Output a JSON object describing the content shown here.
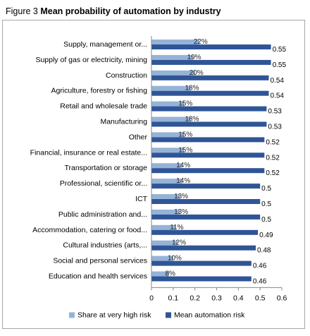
{
  "figure": {
    "label": "Figure 3",
    "title": "Mean probability of automation by industry"
  },
  "chart_data": {
    "type": "bar",
    "orientation": "horizontal",
    "categories": [
      "Supply, management or...",
      "Supply of gas or electricity, mining",
      "Construction",
      "Agriculture, forestry or fishing",
      "Retail and wholesale trade",
      "Manufacturing",
      "Other",
      "Financial, insurance or real estate...",
      "Transportation or storage",
      "Professional, scientific or...",
      "ICT",
      "Public administration and...",
      "Accommodation, catering or food...",
      "Cultural industries (arts,...",
      "Social and personal services",
      "Education and health services"
    ],
    "series": [
      {
        "name": "Share at very high risk",
        "color": "#95b3d7",
        "values": [
          0.22,
          0.19,
          0.2,
          0.18,
          0.15,
          0.18,
          0.15,
          0.15,
          0.14,
          0.14,
          0.13,
          0.13,
          0.11,
          0.12,
          0.1,
          0.08
        ],
        "data_labels": [
          "22%",
          "19%",
          "20%",
          "18%",
          "15%",
          "18%",
          "15%",
          "15%",
          "14%",
          "14%",
          "13%",
          "13%",
          "11%",
          "12%",
          "10%",
          "8%"
        ]
      },
      {
        "name": "Mean automation risk",
        "color": "#2f5597",
        "values": [
          0.55,
          0.55,
          0.54,
          0.54,
          0.53,
          0.53,
          0.52,
          0.52,
          0.52,
          0.5,
          0.5,
          0.5,
          0.49,
          0.48,
          0.46,
          0.46
        ],
        "data_labels": [
          "0.55",
          "0.55",
          "0.54",
          "0.54",
          "0.53",
          "0.53",
          "0.52",
          "0.52",
          "0.52",
          "0.5",
          "0.5",
          "0.5",
          "0.49",
          "0.48",
          "0.46",
          "0.46"
        ]
      }
    ],
    "xlim": [
      0,
      0.6
    ],
    "xticks": [
      "0",
      "0.1",
      "0.2",
      "0.3",
      "0.4",
      "0.5",
      "0.6"
    ],
    "grid": false,
    "legend_position": "bottom"
  }
}
